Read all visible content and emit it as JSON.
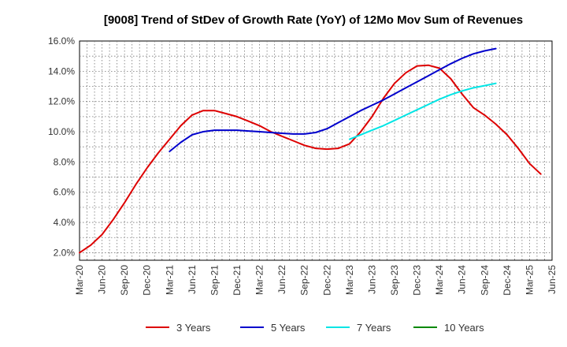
{
  "chart_data": {
    "type": "line",
    "title": "[9008]  Trend of StDev of Growth Rate (YoY) of 12Mo Mov Sum of Revenues",
    "xlabel": "",
    "ylabel": "",
    "ylim": [
      1.5,
      16.0
    ],
    "y_ticks": [
      2.0,
      4.0,
      6.0,
      8.0,
      10.0,
      12.0,
      14.0,
      16.0
    ],
    "y_tick_labels": [
      "2.0%",
      "4.0%",
      "6.0%",
      "8.0%",
      "10.0%",
      "12.0%",
      "14.0%",
      "16.0%"
    ],
    "x_tick_labels": [
      "Mar-20",
      "Jun-20",
      "Sep-20",
      "Dec-20",
      "Mar-21",
      "Jun-21",
      "Sep-21",
      "Dec-21",
      "Mar-22",
      "Jun-22",
      "Sep-22",
      "Dec-22",
      "Mar-23",
      "Jun-23",
      "Sep-23",
      "Dec-23",
      "Mar-24",
      "Jun-24",
      "Sep-24",
      "Dec-24",
      "Mar-25",
      "Jun-25"
    ],
    "grid": true,
    "legend_position": "bottom",
    "series": [
      {
        "name": "3 Years",
        "color": "#dd0000",
        "start_index": 0,
        "values": [
          2.0,
          2.5,
          3.2,
          4.2,
          5.3,
          6.5,
          7.6,
          8.6,
          9.5,
          10.4,
          11.1,
          11.4,
          11.4,
          11.2,
          11.0,
          10.7,
          10.4,
          10.0,
          9.7,
          9.4,
          9.1,
          8.9,
          8.85,
          8.9,
          9.2,
          10.0,
          11.0,
          12.2,
          13.2,
          13.9,
          14.35,
          14.4,
          14.2,
          13.5,
          12.5,
          11.6,
          11.1,
          10.5,
          9.8,
          8.9,
          7.9,
          7.2
        ]
      },
      {
        "name": "5 Years",
        "color": "#0000cc",
        "start_index": 8,
        "values": [
          8.7,
          9.3,
          9.8,
          10.0,
          10.1,
          10.1,
          10.1,
          10.05,
          10.0,
          9.95,
          9.9,
          9.85,
          9.85,
          9.95,
          10.2,
          10.6,
          11.0,
          11.4,
          11.75,
          12.1,
          12.5,
          12.9,
          13.3,
          13.7,
          14.1,
          14.5,
          14.85,
          15.15,
          15.35,
          15.5
        ]
      },
      {
        "name": "7 Years",
        "color": "#00e5e5",
        "start_index": 24,
        "values": [
          9.5,
          9.8,
          10.1,
          10.4,
          10.75,
          11.1,
          11.45,
          11.8,
          12.15,
          12.45,
          12.7,
          12.9,
          13.05,
          13.2
        ]
      },
      {
        "name": "10 Years",
        "color": "#008800",
        "start_index": 0,
        "values": []
      }
    ]
  }
}
